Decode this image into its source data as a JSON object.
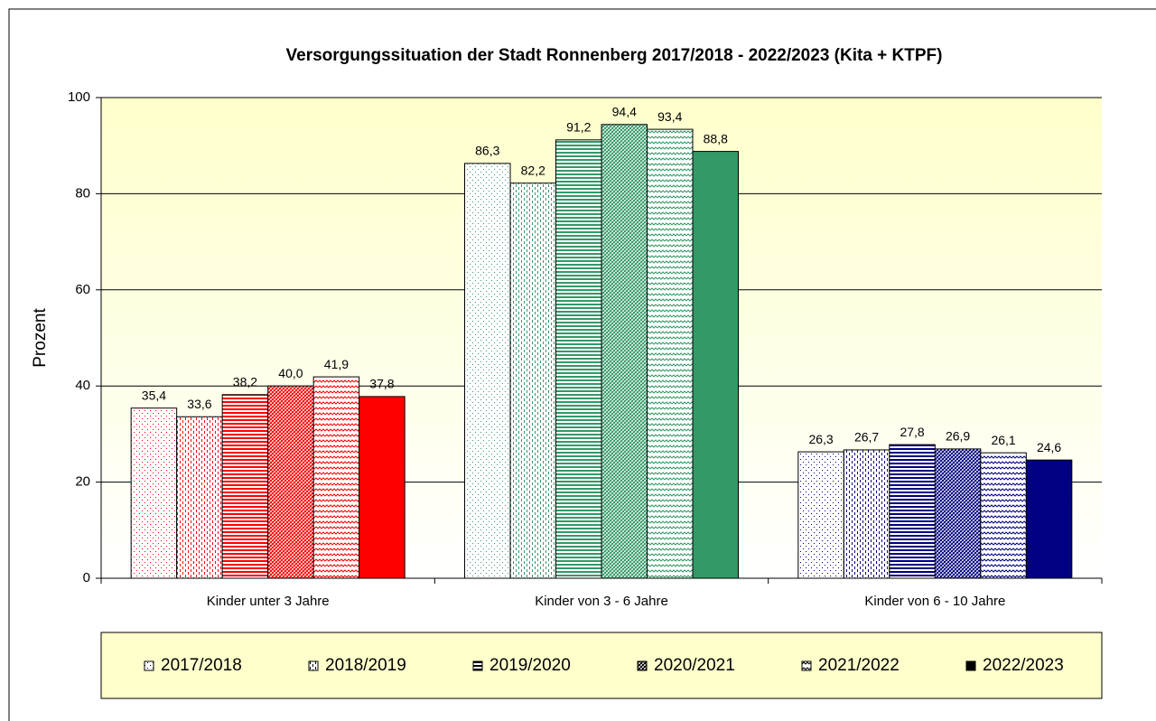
{
  "chart_data": {
    "type": "bar",
    "title": "Versorgungssituation der Stadt Ronnenberg 2017/2018 - 2022/2023 (Kita + KTPF)",
    "ylabel": "Prozent",
    "categories": [
      "Kinder unter 3 Jahre",
      "Kinder von 3 - 6 Jahre",
      "Kinder von 6 - 10 Jahre"
    ],
    "category_colors": [
      "#ff0000",
      "#339966",
      "#000080"
    ],
    "series": [
      {
        "name": "2017/2018",
        "pattern": "dots",
        "values": [
          35.4,
          86.3,
          26.3
        ],
        "value_labels": [
          "35,4",
          "86,3",
          "26,3"
        ]
      },
      {
        "name": "2018/2019",
        "pattern": "dashes",
        "values": [
          33.6,
          82.2,
          26.7
        ],
        "value_labels": [
          "33,6",
          "82,2",
          "26,7"
        ]
      },
      {
        "name": "2019/2020",
        "pattern": "horizontal",
        "values": [
          38.2,
          91.2,
          27.8
        ],
        "value_labels": [
          "38,2",
          "91,2",
          "27,8"
        ]
      },
      {
        "name": "2020/2021",
        "pattern": "diagonal",
        "values": [
          40.0,
          94.4,
          26.9
        ],
        "value_labels": [
          "40,0",
          "94,4",
          "26,9"
        ]
      },
      {
        "name": "2021/2022",
        "pattern": "zigzag",
        "values": [
          41.9,
          93.4,
          26.1
        ],
        "value_labels": [
          "41,9",
          "93,4",
          "26,1"
        ]
      },
      {
        "name": "2022/2023",
        "pattern": "solid",
        "values": [
          37.8,
          88.8,
          24.6
        ],
        "value_labels": [
          "37,8",
          "88,8",
          "24,6"
        ]
      }
    ],
    "ylim": [
      0,
      100
    ],
    "yticks": [
      0,
      20,
      40,
      60,
      80,
      100
    ],
    "grid": true,
    "legend": "bottom"
  }
}
